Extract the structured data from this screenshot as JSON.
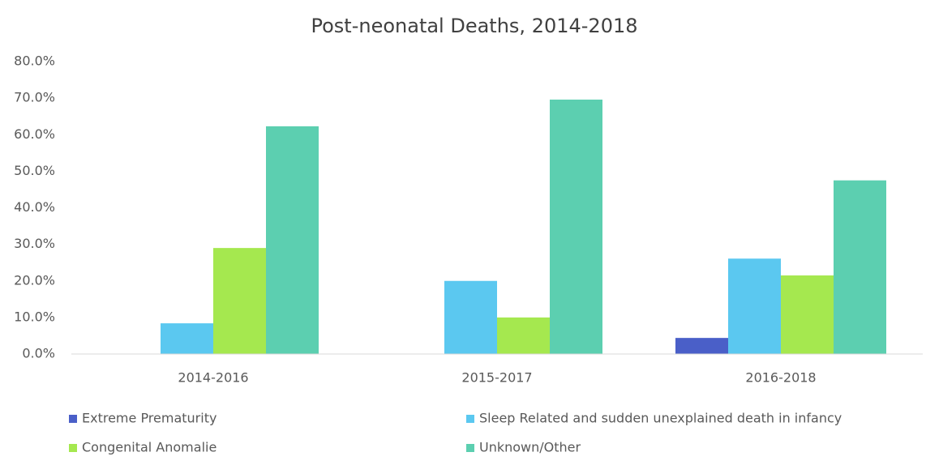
{
  "chart_data": {
    "type": "bar",
    "title": "Post-neonatal Deaths, 2014-2018",
    "categories": [
      "2014-2016",
      "2015-2017",
      "2016-2018"
    ],
    "series": [
      {
        "name": "Extreme Prematurity",
        "color": "#4a5fc8",
        "values": [
          0,
          0,
          4.4
        ]
      },
      {
        "name": "Sleep Related and sudden unexplained death in infancy",
        "color": "#5bc8f0",
        "values": [
          8.4,
          20.0,
          26.1
        ]
      },
      {
        "name": "Congenital Anomalie",
        "color": "#a5e84f",
        "values": [
          29.0,
          10.0,
          21.5
        ]
      },
      {
        "name": "Unknown/Other",
        "color": "#5ccfb0",
        "values": [
          62.3,
          69.6,
          47.5
        ]
      }
    ],
    "ylim": [
      0,
      80
    ],
    "yticks": [
      {
        "value": 0,
        "label": "0.0%"
      },
      {
        "value": 10,
        "label": "10.0%"
      },
      {
        "value": 20,
        "label": "20.0%"
      },
      {
        "value": 30,
        "label": "30.0%"
      },
      {
        "value": 40,
        "label": "40.0%"
      },
      {
        "value": 50,
        "label": "50.0%"
      },
      {
        "value": 60,
        "label": "60.0%"
      },
      {
        "value": 70,
        "label": "70.0%"
      },
      {
        "value": 80,
        "label": "80.0%"
      }
    ],
    "grid": false,
    "legend": "bottom"
  }
}
